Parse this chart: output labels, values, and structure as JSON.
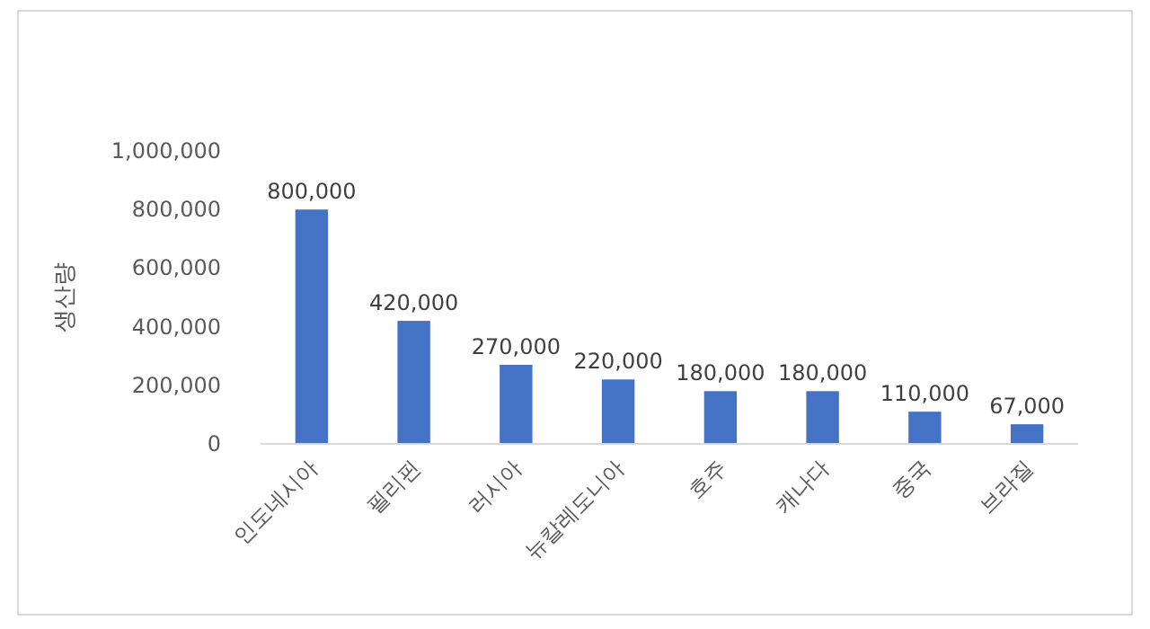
{
  "chart_data": {
    "type": "bar",
    "ylabel": "생산량",
    "categories": [
      "인도네시아",
      "필리핀",
      "러시아",
      "뉴칼레도니아",
      "호주",
      "캐나다",
      "중국",
      "브라질"
    ],
    "values": [
      800000,
      420000,
      270000,
      220000,
      180000,
      180000,
      110000,
      67000
    ],
    "value_labels": [
      "800,000",
      "420,000",
      "270,000",
      "220,000",
      "180,000",
      "180,000",
      "110,000",
      "67,000"
    ],
    "color": "#4472c4",
    "ylim": [
      0,
      1000000
    ],
    "yticks": [
      0,
      {
        "value": 200000,
        "label": "200,000"
      },
      {
        "value": 400000,
        "label": "400,000"
      },
      {
        "value": 600000,
        "label": "600,000"
      },
      {
        "value": 800000,
        "label": "800,000"
      },
      {
        "value": 1000000,
        "label": "1,000,000"
      }
    ]
  }
}
